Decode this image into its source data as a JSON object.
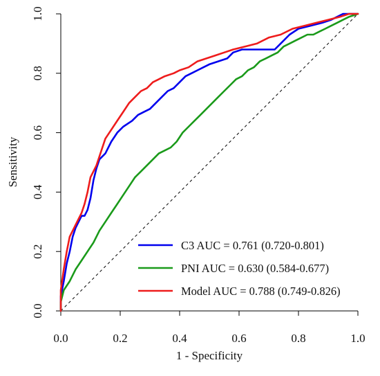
{
  "chart_data": {
    "type": "line",
    "title": "",
    "xlabel": "1 - Specificity",
    "ylabel": "Sensitivity",
    "xlim": [
      0,
      1
    ],
    "ylim": [
      0,
      1
    ],
    "x_ticks": [
      "0.0",
      "0.2",
      "0.4",
      "0.6",
      "0.8",
      "1.0"
    ],
    "y_ticks": [
      "0.0",
      "0.2",
      "0.4",
      "0.6",
      "0.8",
      "1.0"
    ],
    "grid": false,
    "legend_position": "bottom-right",
    "reference_line": {
      "style": "dashed",
      "from": [
        0,
        0
      ],
      "to": [
        1,
        1
      ],
      "color": "#000000"
    },
    "series": [
      {
        "name": "C3",
        "label": "C3 AUC = 0.761 (0.720-0.801)",
        "color": "#0000ee",
        "points": [
          [
            0,
            0
          ],
          [
            0,
            0.05
          ],
          [
            0.01,
            0.1
          ],
          [
            0.02,
            0.16
          ],
          [
            0.03,
            0.2
          ],
          [
            0.04,
            0.25
          ],
          [
            0.05,
            0.28
          ],
          [
            0.06,
            0.3
          ],
          [
            0.07,
            0.32
          ],
          [
            0.08,
            0.32
          ],
          [
            0.09,
            0.34
          ],
          [
            0.1,
            0.38
          ],
          [
            0.11,
            0.44
          ],
          [
            0.12,
            0.48
          ],
          [
            0.13,
            0.51
          ],
          [
            0.15,
            0.53
          ],
          [
            0.17,
            0.57
          ],
          [
            0.19,
            0.6
          ],
          [
            0.21,
            0.62
          ],
          [
            0.24,
            0.64
          ],
          [
            0.26,
            0.66
          ],
          [
            0.28,
            0.67
          ],
          [
            0.3,
            0.68
          ],
          [
            0.32,
            0.7
          ],
          [
            0.34,
            0.72
          ],
          [
            0.36,
            0.74
          ],
          [
            0.38,
            0.75
          ],
          [
            0.4,
            0.77
          ],
          [
            0.42,
            0.79
          ],
          [
            0.44,
            0.8
          ],
          [
            0.46,
            0.81
          ],
          [
            0.48,
            0.82
          ],
          [
            0.5,
            0.83
          ],
          [
            0.53,
            0.84
          ],
          [
            0.56,
            0.85
          ],
          [
            0.58,
            0.87
          ],
          [
            0.61,
            0.88
          ],
          [
            0.65,
            0.88
          ],
          [
            0.7,
            0.88
          ],
          [
            0.72,
            0.88
          ],
          [
            0.74,
            0.9
          ],
          [
            0.77,
            0.93
          ],
          [
            0.8,
            0.95
          ],
          [
            0.84,
            0.96
          ],
          [
            0.88,
            0.97
          ],
          [
            0.91,
            0.98
          ],
          [
            0.93,
            0.99
          ],
          [
            0.95,
            1.0
          ],
          [
            1,
            1
          ]
        ]
      },
      {
        "name": "PNI",
        "label": "PNI AUC = 0.630 (0.584-0.677)",
        "color": "#1a9a1a",
        "points": [
          [
            0,
            0
          ],
          [
            0,
            0.03
          ],
          [
            0.01,
            0.07
          ],
          [
            0.03,
            0.1
          ],
          [
            0.05,
            0.14
          ],
          [
            0.07,
            0.17
          ],
          [
            0.09,
            0.2
          ],
          [
            0.11,
            0.23
          ],
          [
            0.13,
            0.27
          ],
          [
            0.15,
            0.3
          ],
          [
            0.17,
            0.33
          ],
          [
            0.19,
            0.36
          ],
          [
            0.21,
            0.39
          ],
          [
            0.23,
            0.42
          ],
          [
            0.25,
            0.45
          ],
          [
            0.27,
            0.47
          ],
          [
            0.29,
            0.49
          ],
          [
            0.31,
            0.51
          ],
          [
            0.33,
            0.53
          ],
          [
            0.35,
            0.54
          ],
          [
            0.37,
            0.55
          ],
          [
            0.39,
            0.57
          ],
          [
            0.41,
            0.6
          ],
          [
            0.43,
            0.62
          ],
          [
            0.45,
            0.64
          ],
          [
            0.47,
            0.66
          ],
          [
            0.49,
            0.68
          ],
          [
            0.51,
            0.7
          ],
          [
            0.53,
            0.72
          ],
          [
            0.55,
            0.74
          ],
          [
            0.57,
            0.76
          ],
          [
            0.59,
            0.78
          ],
          [
            0.61,
            0.79
          ],
          [
            0.63,
            0.81
          ],
          [
            0.65,
            0.82
          ],
          [
            0.67,
            0.84
          ],
          [
            0.69,
            0.85
          ],
          [
            0.71,
            0.86
          ],
          [
            0.73,
            0.87
          ],
          [
            0.75,
            0.89
          ],
          [
            0.77,
            0.9
          ],
          [
            0.79,
            0.91
          ],
          [
            0.81,
            0.92
          ],
          [
            0.83,
            0.93
          ],
          [
            0.85,
            0.93
          ],
          [
            0.87,
            0.94
          ],
          [
            0.89,
            0.95
          ],
          [
            0.91,
            0.96
          ],
          [
            0.93,
            0.97
          ],
          [
            0.95,
            0.98
          ],
          [
            0.97,
            0.99
          ],
          [
            1,
            1
          ]
        ]
      },
      {
        "name": "Model",
        "label": "Model AUC = 0.788 (0.749-0.826)",
        "color": "#ee1c1c",
        "points": [
          [
            0,
            0
          ],
          [
            0,
            0.07
          ],
          [
            0.01,
            0.14
          ],
          [
            0.02,
            0.2
          ],
          [
            0.03,
            0.25
          ],
          [
            0.05,
            0.29
          ],
          [
            0.07,
            0.33
          ],
          [
            0.08,
            0.36
          ],
          [
            0.09,
            0.4
          ],
          [
            0.1,
            0.45
          ],
          [
            0.11,
            0.47
          ],
          [
            0.12,
            0.49
          ],
          [
            0.13,
            0.52
          ],
          [
            0.14,
            0.55
          ],
          [
            0.15,
            0.58
          ],
          [
            0.17,
            0.61
          ],
          [
            0.19,
            0.64
          ],
          [
            0.21,
            0.67
          ],
          [
            0.23,
            0.7
          ],
          [
            0.25,
            0.72
          ],
          [
            0.27,
            0.74
          ],
          [
            0.29,
            0.75
          ],
          [
            0.31,
            0.77
          ],
          [
            0.33,
            0.78
          ],
          [
            0.35,
            0.79
          ],
          [
            0.38,
            0.8
          ],
          [
            0.4,
            0.81
          ],
          [
            0.43,
            0.82
          ],
          [
            0.46,
            0.84
          ],
          [
            0.49,
            0.85
          ],
          [
            0.52,
            0.86
          ],
          [
            0.55,
            0.87
          ],
          [
            0.58,
            0.88
          ],
          [
            0.62,
            0.89
          ],
          [
            0.66,
            0.9
          ],
          [
            0.7,
            0.92
          ],
          [
            0.74,
            0.93
          ],
          [
            0.78,
            0.95
          ],
          [
            0.82,
            0.96
          ],
          [
            0.86,
            0.97
          ],
          [
            0.9,
            0.98
          ],
          [
            0.94,
            0.99
          ],
          [
            0.97,
            1.0
          ],
          [
            1,
            1
          ]
        ]
      }
    ]
  }
}
